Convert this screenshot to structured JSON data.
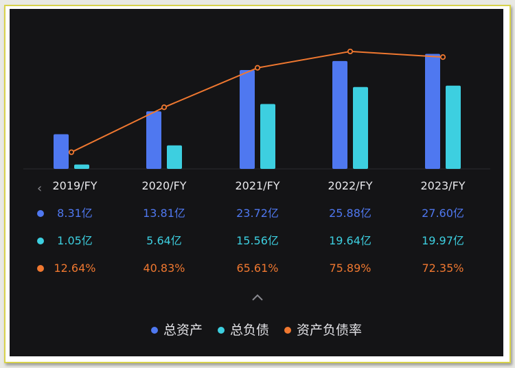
{
  "chart_data": {
    "type": "bar",
    "categories": [
      "2019/FY",
      "2020/FY",
      "2021/FY",
      "2022/FY",
      "2023/FY"
    ],
    "series": [
      {
        "name": "总资产",
        "type": "bar",
        "values": [
          8.31,
          13.81,
          23.72,
          25.88,
          27.6
        ],
        "labels": [
          "8.31亿",
          "13.81亿",
          "23.72亿",
          "25.88亿",
          "27.60亿"
        ],
        "color": "#4f78f0"
      },
      {
        "name": "总负债",
        "type": "bar",
        "values": [
          1.05,
          5.64,
          15.56,
          19.64,
          19.97
        ],
        "labels": [
          "1.05亿",
          "5.64亿",
          "15.56亿",
          "19.64亿",
          "19.97亿"
        ],
        "color": "#3dcfe0"
      },
      {
        "name": "资产负债率",
        "type": "line",
        "values": [
          12.64,
          40.83,
          65.61,
          75.89,
          72.35
        ],
        "labels": [
          "12.64%",
          "40.83%",
          "65.61%",
          "75.89%",
          "72.35%"
        ],
        "color": "#f07830"
      }
    ],
    "grid": false,
    "legend": "bottom-center"
  },
  "colors": {
    "background": "#141416",
    "axis": "#2c2c30",
    "text": "#e9e9ec"
  },
  "icons": {
    "prev": "chevron-left-icon",
    "expand": "chevron-up-icon"
  }
}
